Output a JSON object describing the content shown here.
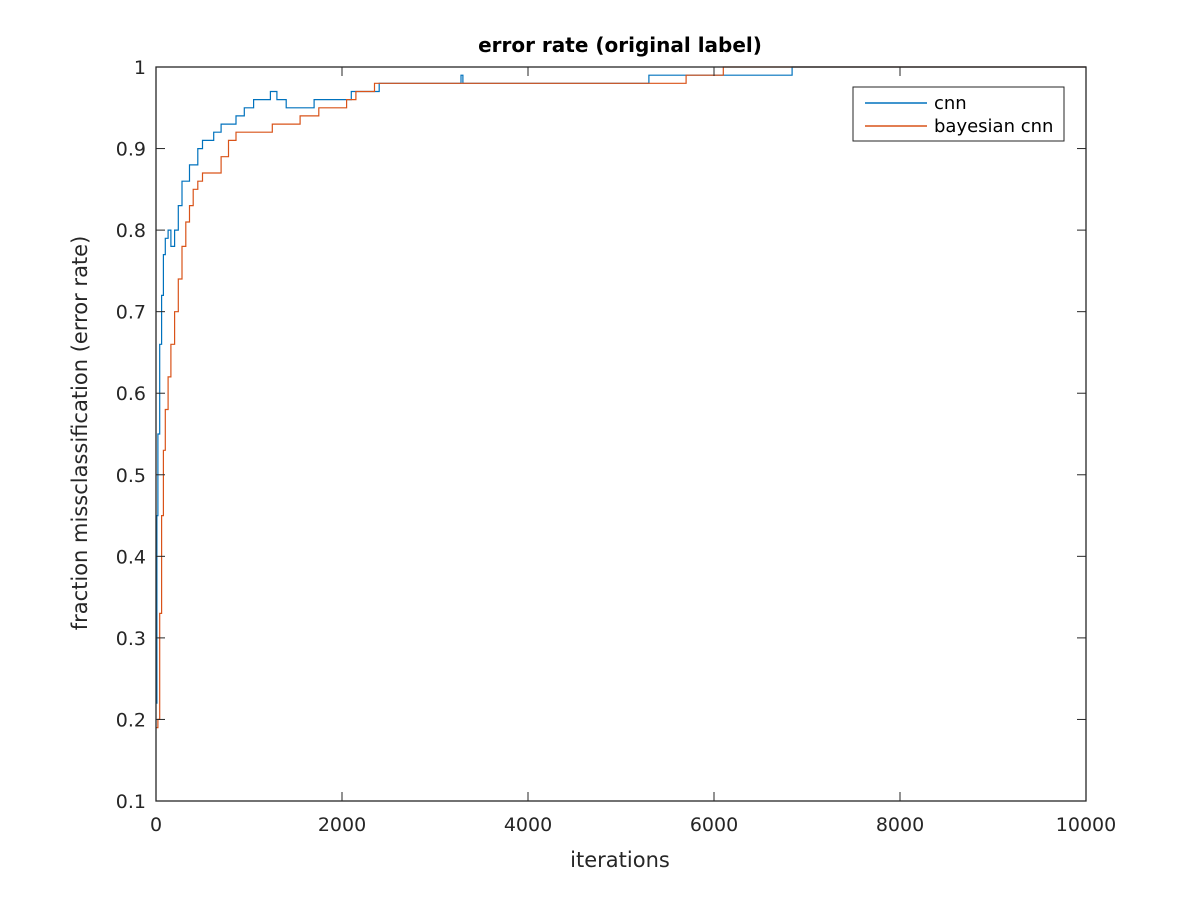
{
  "chart_data": {
    "type": "line",
    "title": "error rate (original label)",
    "xlabel": "iterations",
    "ylabel": "fraction missclassification (error rate)",
    "xlim": [
      0,
      10000
    ],
    "ylim": [
      0.1,
      1
    ],
    "xticks": [
      0,
      2000,
      4000,
      6000,
      8000,
      10000
    ],
    "xtick_labels": [
      "0",
      "2000",
      "4000",
      "6000",
      "8000",
      "10000"
    ],
    "yticks": [
      0.1,
      0.2,
      0.3,
      0.4,
      0.5,
      0.6,
      0.7,
      0.8,
      0.9,
      1
    ],
    "ytick_labels": [
      "0.1",
      "0.2",
      "0.3",
      "0.4",
      "0.5",
      "0.6",
      "0.7",
      "0.8",
      "0.9",
      "1"
    ],
    "grid": false,
    "legend_position": "top-right",
    "series": [
      {
        "name": "cnn",
        "color": "#0072BD",
        "x": [
          0,
          10,
          20,
          40,
          60,
          80,
          100,
          130,
          160,
          200,
          240,
          280,
          320,
          360,
          400,
          450,
          500,
          560,
          620,
          700,
          780,
          860,
          950,
          1050,
          1150,
          1230,
          1300,
          1400,
          1500,
          1600,
          1700,
          1800,
          1900,
          2000,
          2100,
          2200,
          2300,
          2400,
          2500,
          3000,
          3250,
          3280,
          3300,
          3500,
          4000,
          4500,
          5000,
          5300,
          5500,
          6000,
          6500,
          6800,
          6840,
          7000,
          8000,
          9000,
          10000
        ],
        "y": [
          0.22,
          0.45,
          0.55,
          0.66,
          0.72,
          0.77,
          0.79,
          0.8,
          0.78,
          0.8,
          0.83,
          0.86,
          0.86,
          0.88,
          0.88,
          0.9,
          0.91,
          0.91,
          0.92,
          0.93,
          0.93,
          0.94,
          0.95,
          0.96,
          0.96,
          0.97,
          0.96,
          0.95,
          0.95,
          0.95,
          0.96,
          0.96,
          0.96,
          0.96,
          0.97,
          0.97,
          0.97,
          0.98,
          0.98,
          0.98,
          0.98,
          0.99,
          0.98,
          0.98,
          0.98,
          0.98,
          0.98,
          0.99,
          0.99,
          0.99,
          0.99,
          0.99,
          1,
          1,
          1,
          1,
          1
        ]
      },
      {
        "name": "bayesian cnn",
        "color": "#D95319",
        "x": [
          0,
          20,
          40,
          60,
          80,
          100,
          130,
          160,
          200,
          240,
          280,
          320,
          360,
          400,
          450,
          500,
          560,
          620,
          700,
          780,
          860,
          950,
          1050,
          1150,
          1250,
          1350,
          1450,
          1550,
          1650,
          1750,
          1850,
          1950,
          2050,
          2150,
          2250,
          2350,
          2500,
          2700,
          2900,
          3100,
          3300,
          3500,
          3700,
          3900,
          4100,
          4300,
          4500,
          4700,
          4900,
          5100,
          5300,
          5500,
          5700,
          5900,
          6100,
          6300,
          6500,
          6700,
          6900,
          7500,
          8000,
          8600,
          9000,
          9600,
          10000
        ],
        "y": [
          0.19,
          0.2,
          0.33,
          0.45,
          0.53,
          0.58,
          0.62,
          0.66,
          0.7,
          0.74,
          0.78,
          0.81,
          0.83,
          0.85,
          0.86,
          0.87,
          0.87,
          0.87,
          0.89,
          0.91,
          0.92,
          0.92,
          0.92,
          0.92,
          0.93,
          0.93,
          0.93,
          0.94,
          0.94,
          0.95,
          0.95,
          0.95,
          0.96,
          0.97,
          0.97,
          0.98,
          0.98,
          0.98,
          0.98,
          0.98,
          0.98,
          0.98,
          0.98,
          0.98,
          0.98,
          0.98,
          0.98,
          0.98,
          0.98,
          0.98,
          0.98,
          0.98,
          0.99,
          0.99,
          1,
          1,
          1,
          1,
          1,
          1,
          1,
          1,
          1,
          1,
          1
        ]
      }
    ]
  }
}
